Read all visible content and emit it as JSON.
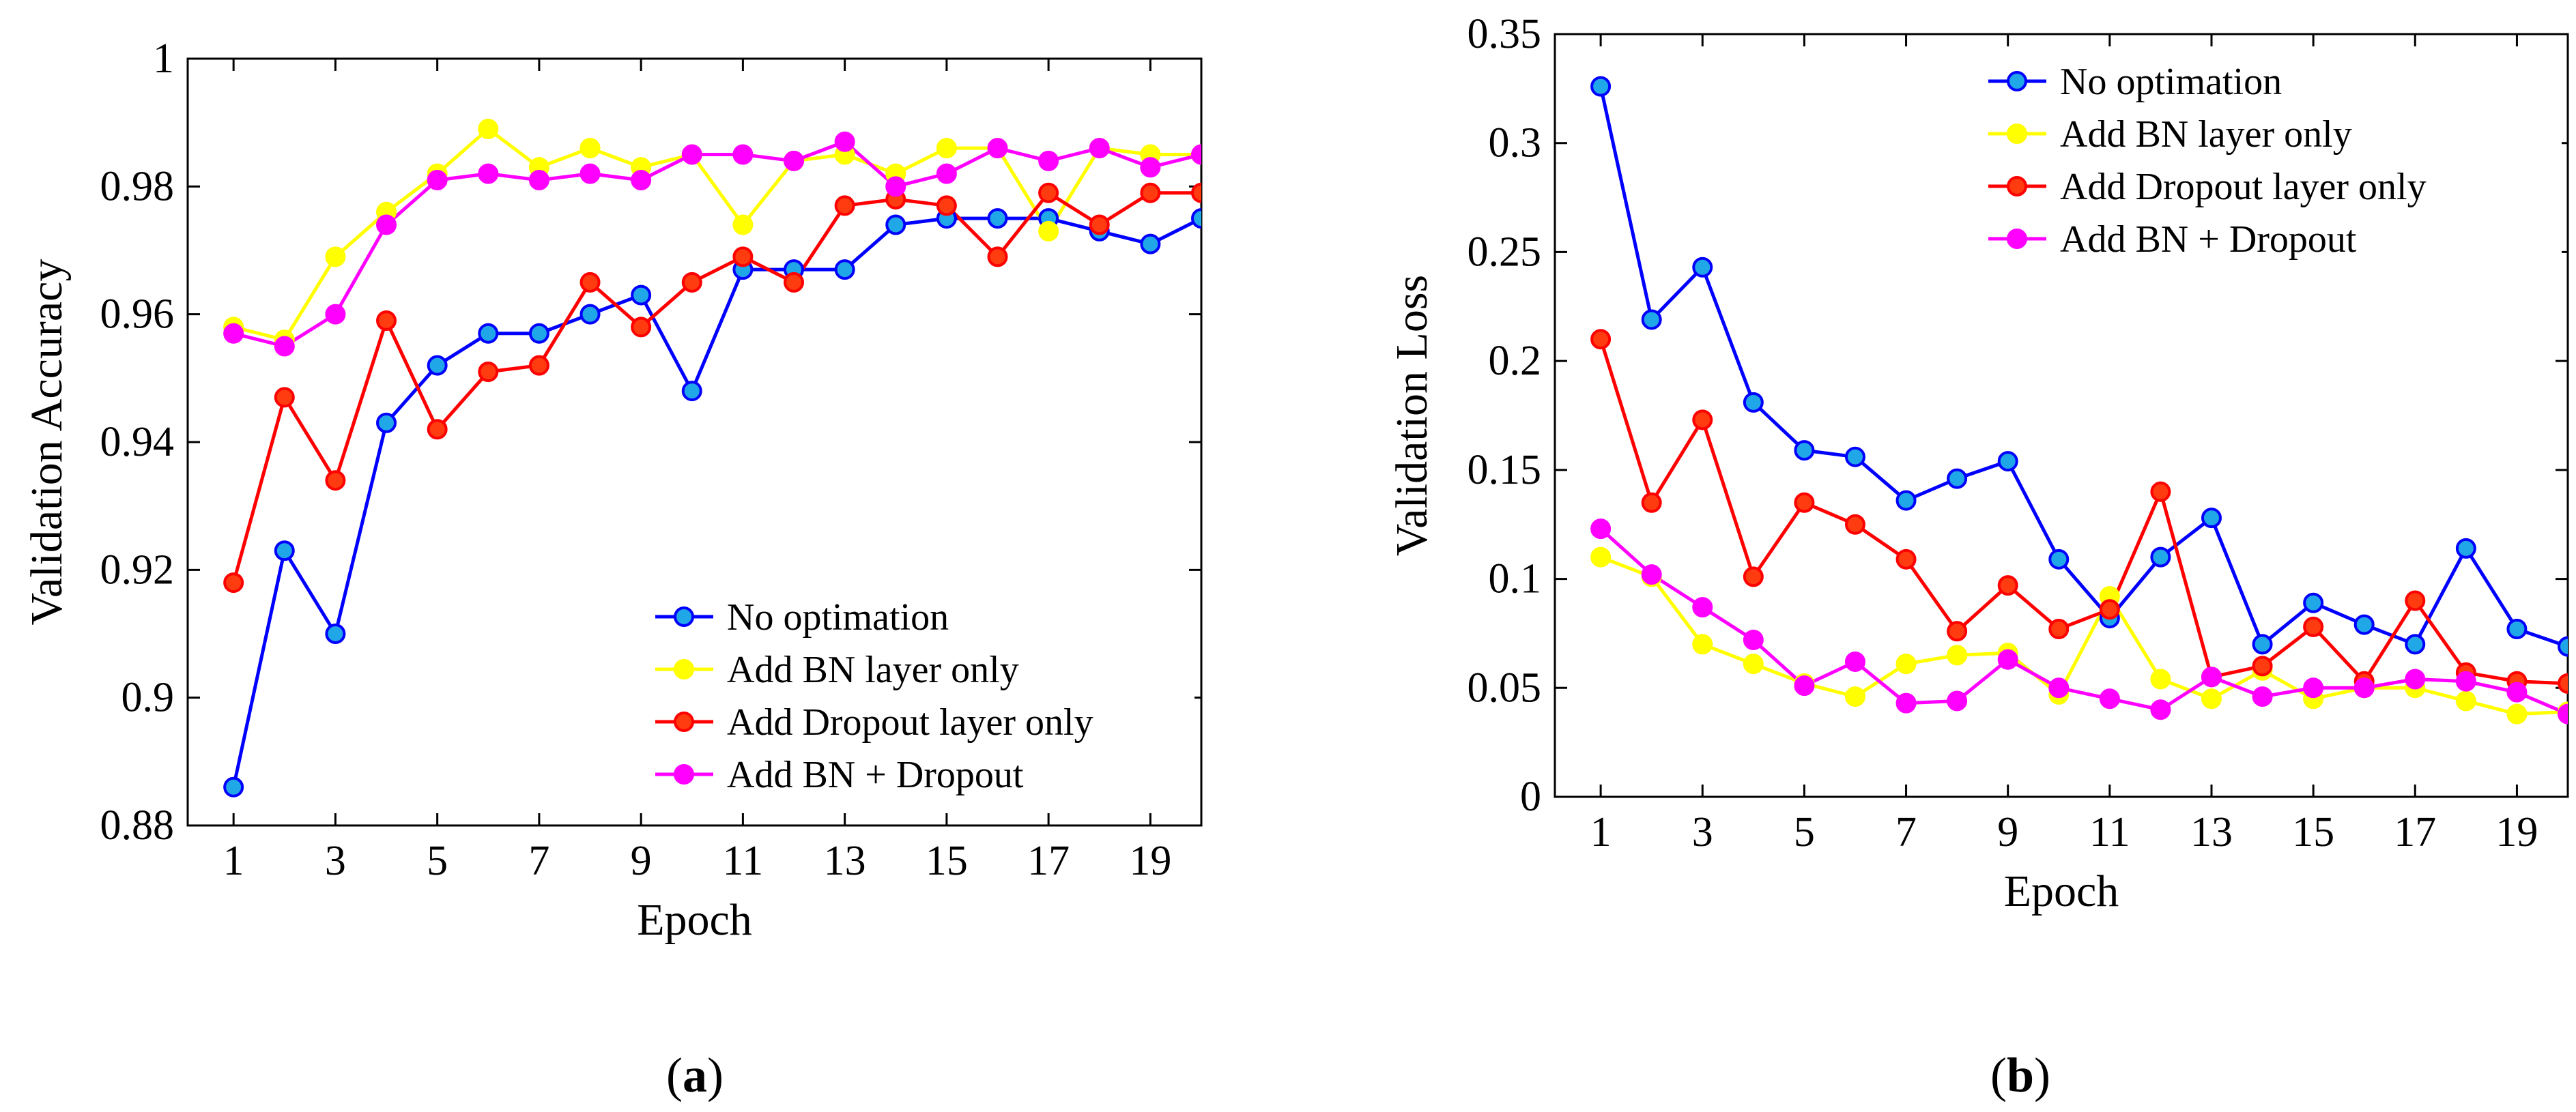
{
  "chart_data": [
    {
      "type": "line",
      "panel_label": "a",
      "xlabel": "Epoch",
      "ylabel": "Validation Accuracy",
      "xlim": [
        0.1,
        20
      ],
      "ylim": [
        0.88,
        1
      ],
      "xticks": [
        1,
        3,
        5,
        7,
        9,
        11,
        13,
        15,
        17,
        19
      ],
      "yticks": [
        0.88,
        0.9,
        0.92,
        0.94,
        0.96,
        0.98,
        1
      ],
      "ytick_labels": [
        "0.88",
        "0.9",
        "0.92",
        "0.94",
        "0.96",
        "0.98",
        "1"
      ],
      "legend_position": "bottom-right",
      "x": [
        1,
        2,
        3,
        4,
        5,
        6,
        7,
        8,
        9,
        10,
        11,
        12,
        13,
        14,
        15,
        16,
        17,
        18,
        19,
        20
      ],
      "series": [
        {
          "name": "No optimation",
          "line_color": "#0000ff",
          "marker_fill": "#20a7e8",
          "values": [
            0.886,
            0.923,
            0.91,
            0.943,
            0.952,
            0.957,
            0.957,
            0.96,
            0.963,
            0.948,
            0.967,
            0.967,
            0.967,
            0.974,
            0.975,
            0.975,
            0.975,
            0.973,
            0.971,
            0.975
          ]
        },
        {
          "name": "Add BN layer only",
          "line_color": "#ffff00",
          "marker_fill": "#ffff00",
          "values": [
            0.958,
            0.956,
            0.969,
            0.976,
            0.982,
            0.989,
            0.983,
            0.986,
            0.983,
            0.985,
            0.974,
            0.984,
            0.985,
            0.982,
            0.986,
            0.986,
            0.973,
            0.986,
            0.985,
            0.985
          ]
        },
        {
          "name": "Add Dropout layer only",
          "line_color": "#ff0000",
          "marker_fill": "#ff3b10",
          "values": [
            0.918,
            0.947,
            0.934,
            0.959,
            0.942,
            0.951,
            0.952,
            0.965,
            0.958,
            0.965,
            0.969,
            0.965,
            0.977,
            0.978,
            0.977,
            0.969,
            0.979,
            0.974,
            0.979,
            0.979
          ]
        },
        {
          "name": "Add BN + Dropout",
          "line_color": "#ff00ff",
          "marker_fill": "#ff00ff",
          "values": [
            0.957,
            0.955,
            0.96,
            0.974,
            0.981,
            0.982,
            0.981,
            0.982,
            0.981,
            0.985,
            0.985,
            0.984,
            0.987,
            0.98,
            0.982,
            0.986,
            0.984,
            0.986,
            0.983,
            0.985
          ]
        }
      ]
    },
    {
      "type": "line",
      "panel_label": "b",
      "xlabel": "Epoch",
      "ylabel": "Validation Loss",
      "xlim": [
        0.1,
        20
      ],
      "ylim": [
        0,
        0.35
      ],
      "xticks": [
        1,
        3,
        5,
        7,
        9,
        11,
        13,
        15,
        17,
        19
      ],
      "yticks": [
        0,
        0.05,
        0.1,
        0.15,
        0.2,
        0.25,
        0.3,
        0.35
      ],
      "ytick_labels": [
        "0",
        "0.05",
        "0.1",
        "0.15",
        "0.2",
        "0.25",
        "0.3",
        "0.35"
      ],
      "legend_position": "top-right",
      "x": [
        1,
        2,
        3,
        4,
        5,
        6,
        7,
        8,
        9,
        10,
        11,
        12,
        13,
        14,
        15,
        16,
        17,
        18,
        19,
        20
      ],
      "series": [
        {
          "name": "No optimation",
          "line_color": "#0000ff",
          "marker_fill": "#20a7e8",
          "values": [
            0.326,
            0.219,
            0.243,
            0.181,
            0.159,
            0.156,
            0.136,
            0.146,
            0.154,
            0.109,
            0.082,
            0.11,
            0.128,
            0.07,
            0.089,
            0.079,
            0.07,
            0.114,
            0.077,
            0.069
          ]
        },
        {
          "name": "Add BN layer only",
          "line_color": "#ffff00",
          "marker_fill": "#ffff00",
          "values": [
            0.11,
            0.101,
            0.07,
            0.061,
            0.052,
            0.046,
            0.061,
            0.065,
            0.066,
            0.047,
            0.092,
            0.054,
            0.045,
            0.058,
            0.045,
            0.05,
            0.05,
            0.044,
            0.038,
            0.039
          ]
        },
        {
          "name": "Add Dropout layer only",
          "line_color": "#ff0000",
          "marker_fill": "#ff3b10",
          "values": [
            0.21,
            0.135,
            0.173,
            0.101,
            0.135,
            0.125,
            0.109,
            0.076,
            0.097,
            0.077,
            0.086,
            0.14,
            0.055,
            0.06,
            0.078,
            0.053,
            0.09,
            0.057,
            0.053,
            0.052
          ]
        },
        {
          "name": "Add BN + Dropout",
          "line_color": "#ff00ff",
          "marker_fill": "#ff00ff",
          "values": [
            0.123,
            0.102,
            0.087,
            0.072,
            0.051,
            0.062,
            0.043,
            0.044,
            0.063,
            0.05,
            0.045,
            0.04,
            0.055,
            0.046,
            0.05,
            0.05,
            0.054,
            0.053,
            0.048,
            0.038
          ]
        }
      ]
    }
  ]
}
